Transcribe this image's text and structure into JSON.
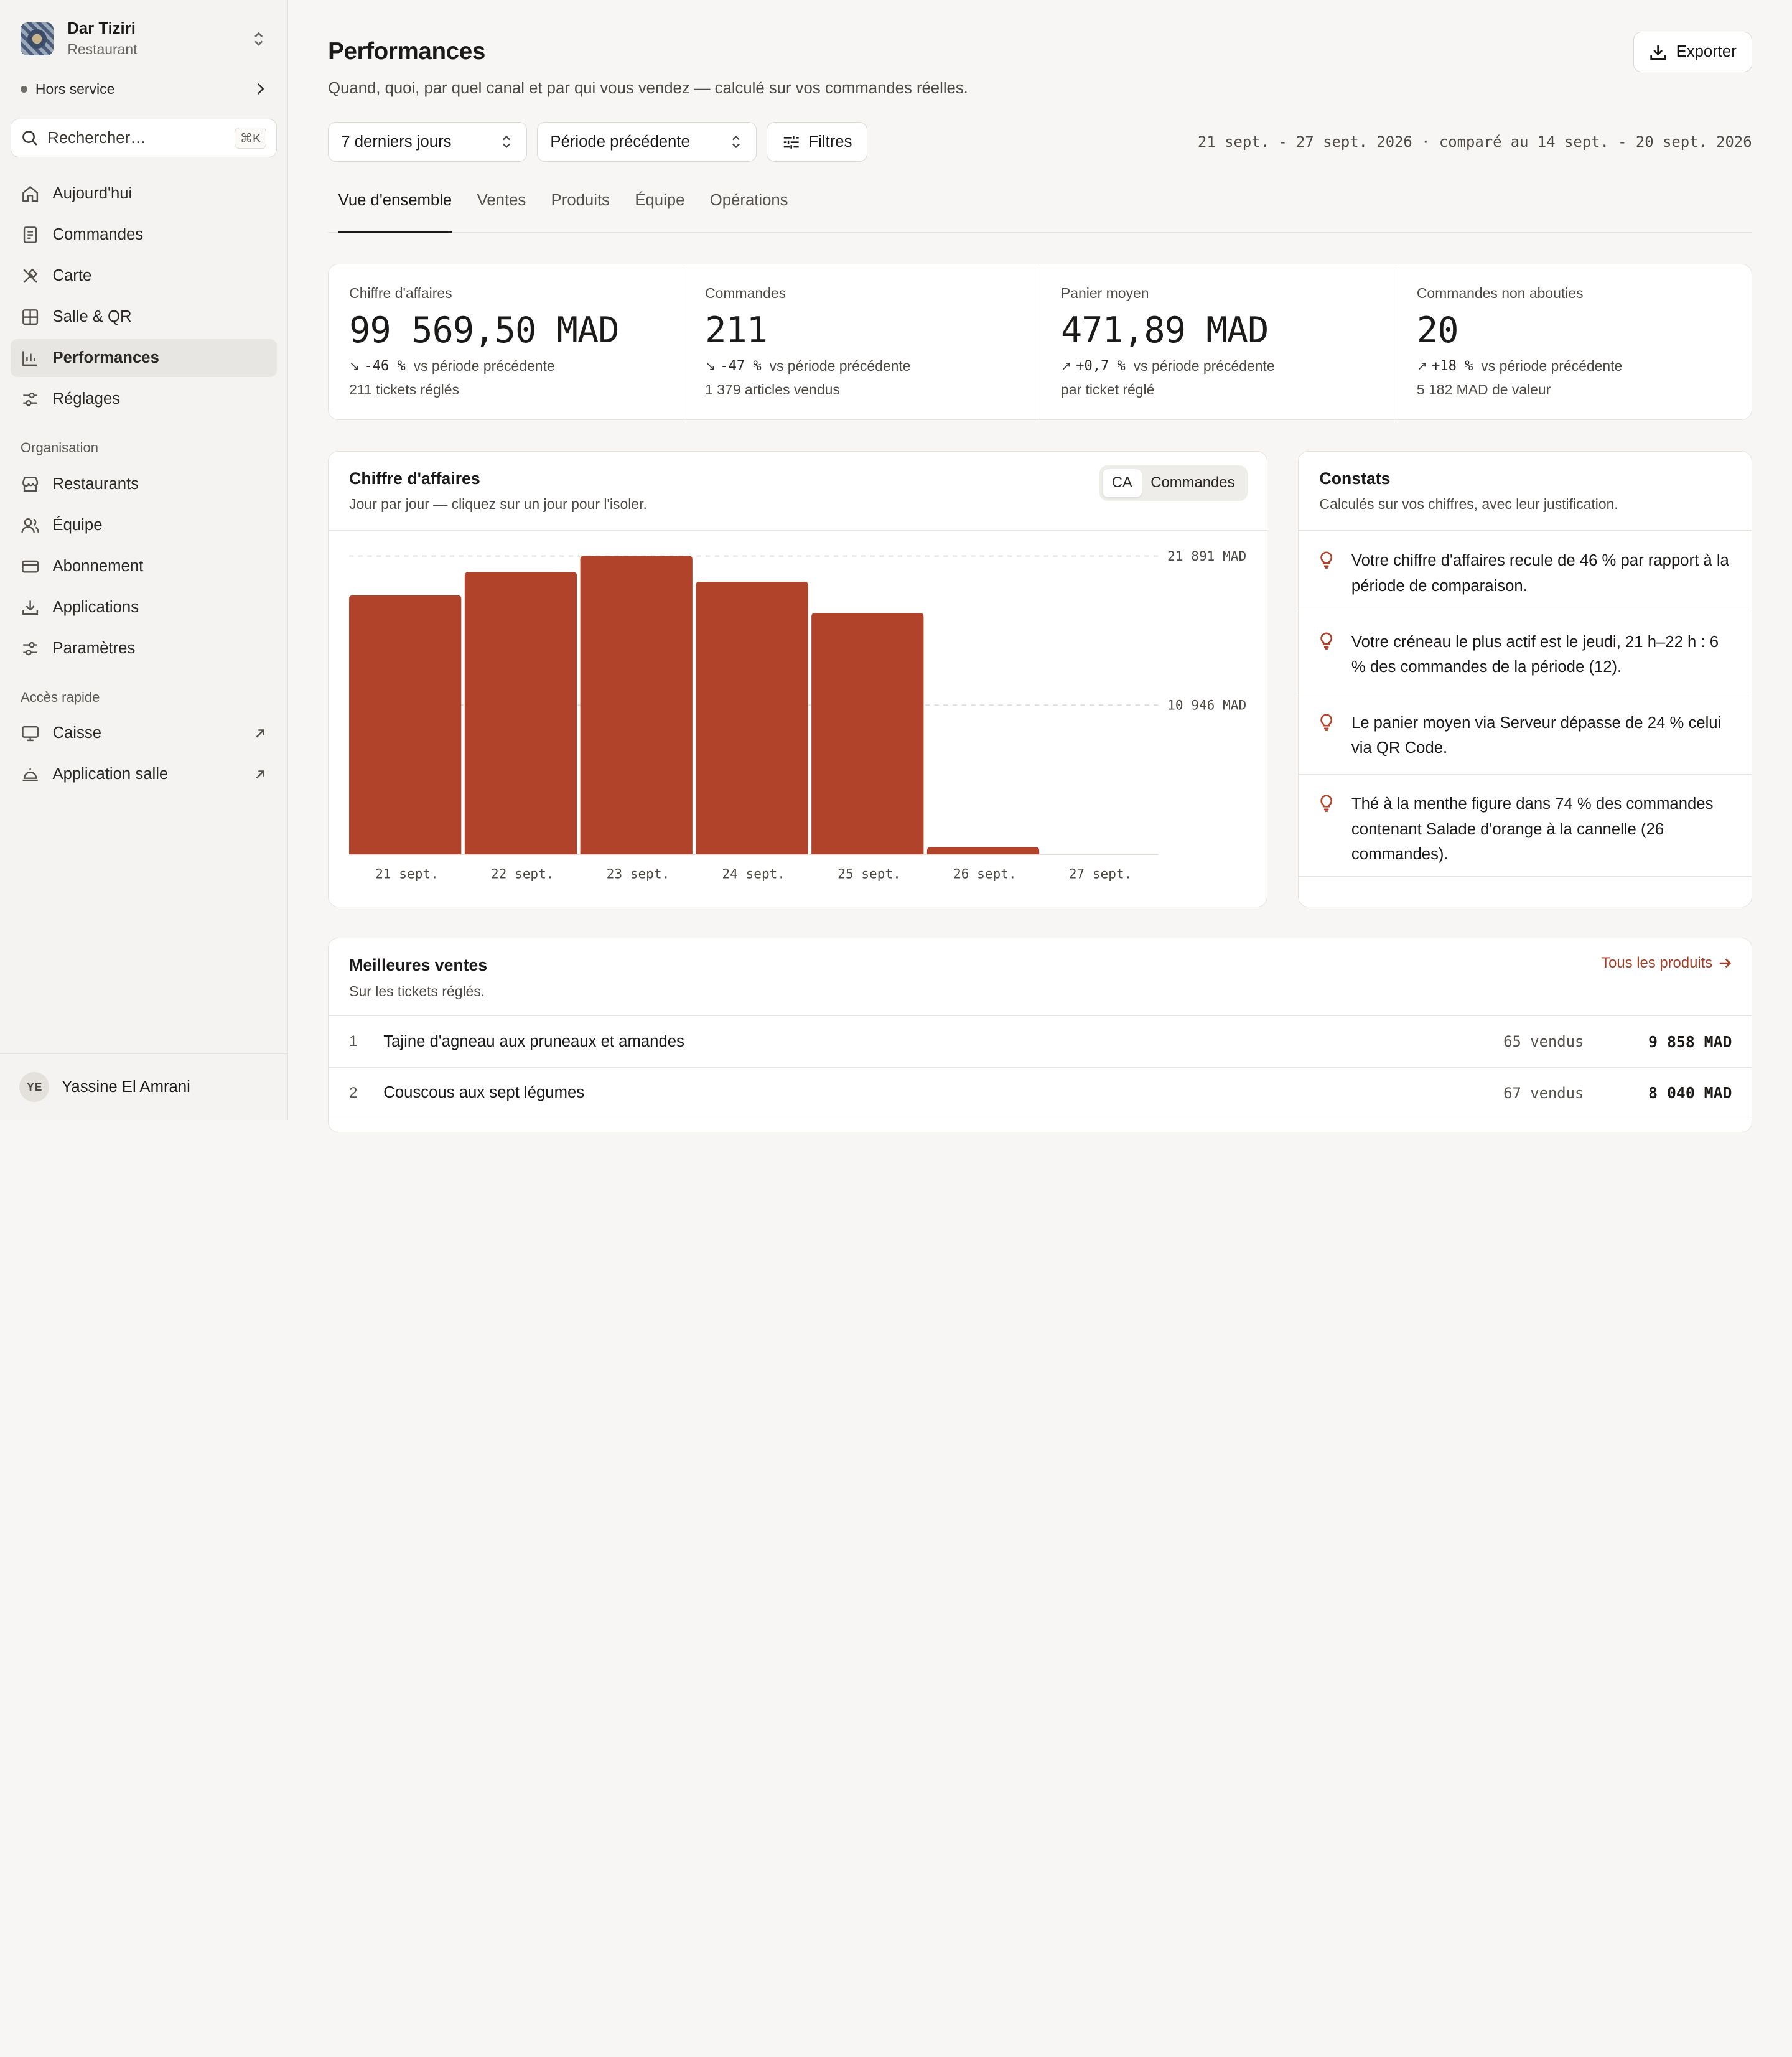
{
  "workspace": {
    "name": "Dar Tiziri",
    "subtitle": "Restaurant"
  },
  "status": {
    "label": "Hors service"
  },
  "search": {
    "placeholder": "Rechercher…",
    "shortcut": "⌘K"
  },
  "nav": {
    "main": [
      {
        "label": "Aujourd'hui",
        "icon": "home-icon"
      },
      {
        "label": "Commandes",
        "icon": "receipt-icon"
      },
      {
        "label": "Carte",
        "icon": "utensils-icon"
      },
      {
        "label": "Salle & QR",
        "icon": "grid-icon"
      },
      {
        "label": "Performances",
        "icon": "bar-chart-icon",
        "active": true
      },
      {
        "label": "Réglages",
        "icon": "sliders-icon"
      }
    ],
    "org_label": "Organisation",
    "org": [
      {
        "label": "Restaurants",
        "icon": "store-icon"
      },
      {
        "label": "Équipe",
        "icon": "users-icon"
      },
      {
        "label": "Abonnement",
        "icon": "credit-card-icon"
      },
      {
        "label": "Applications",
        "icon": "download-icon"
      },
      {
        "label": "Paramètres",
        "icon": "settings-icon"
      }
    ],
    "quick_label": "Accès rapide",
    "quick": [
      {
        "label": "Caisse",
        "icon": "monitor-icon"
      },
      {
        "label": "Application salle",
        "icon": "bell-icon"
      }
    ]
  },
  "user": {
    "initials": "YE",
    "name": "Yassine El Amrani"
  },
  "page": {
    "title": "Performances",
    "subtitle": "Quand, quoi, par quel canal et par qui vous vendez — calculé sur vos commandes réelles.",
    "export_label": "Exporter",
    "period_select": "7 derniers jours",
    "compare_select": "Période précédente",
    "filters_label": "Filtres",
    "range_text": "21 sept. - 27 sept. 2026 · comparé au 14 sept. - 20 sept. 2026"
  },
  "tabs": [
    "Vue d'ensemble",
    "Ventes",
    "Produits",
    "Équipe",
    "Opérations"
  ],
  "kpis": [
    {
      "label": "Chiffre d'affaires",
      "value": "99 569,50 MAD",
      "direction": "down",
      "delta": "-46 %",
      "delta_suffix": "vs période précédente",
      "foot": "211 tickets réglés"
    },
    {
      "label": "Commandes",
      "value": "211",
      "direction": "down",
      "delta": "-47 %",
      "delta_suffix": "vs période précédente",
      "foot": "1 379 articles vendus"
    },
    {
      "label": "Panier moyen",
      "value": "471,89 MAD",
      "direction": "up",
      "delta": "+0,7 %",
      "delta_suffix": "vs période précédente",
      "foot": "par ticket réglé"
    },
    {
      "label": "Commandes non abouties",
      "value": "20",
      "direction": "up",
      "delta": "+18 %",
      "delta_suffix": "vs période précédente",
      "foot": "5 182 MAD de valeur"
    }
  ],
  "chart_card": {
    "title": "Chiffre d'affaires",
    "subtitle": "Jour par jour — cliquez sur un jour pour l'isoler.",
    "toggle": [
      "CA",
      "Commandes"
    ]
  },
  "chart_data": {
    "type": "bar",
    "categories": [
      "21 sept.",
      "22 sept.",
      "23 sept.",
      "24 sept.",
      "25 sept.",
      "26 sept.",
      "27 sept."
    ],
    "values": [
      19000,
      20700,
      21891,
      20000,
      17700,
      520,
      0
    ],
    "title": "",
    "xlabel": "",
    "ylabel": "",
    "ylim": [
      0,
      21891
    ],
    "y_ticks": [
      {
        "value": 21891,
        "label": "21 891 MAD"
      },
      {
        "value": 10946,
        "label": "10 946 MAD"
      }
    ],
    "bar_color": "#b0432a",
    "grid": true
  },
  "constats": {
    "title": "Constats",
    "subtitle": "Calculés sur vos chiffres, avec leur justification.",
    "items": [
      "Votre chiffre d'affaires recule de 46 % par rapport à la période de comparaison.",
      "Votre créneau le plus actif est le jeudi, 21 h–22 h : 6 % des commandes de la période (12).",
      "Le panier moyen via Serveur dépasse de 24 % celui via QR Code.",
      "Thé à la menthe figure dans 74 % des commandes contenant Salade d'orange à la cannelle (26 commandes)."
    ]
  },
  "best": {
    "title": "Meilleures ventes",
    "subtitle": "Sur les tickets réglés.",
    "link": "Tous les produits",
    "rows": [
      {
        "rank": "1",
        "name": "Tajine d'agneau aux pruneaux et amandes",
        "qty": "65 vendus",
        "amount": "9 858 MAD"
      },
      {
        "rank": "2",
        "name": "Couscous aux sept légumes",
        "qty": "67 vendus",
        "amount": "8 040 MAD"
      }
    ]
  },
  "colors": {
    "accent": "#b0432a",
    "link": "#a13d25",
    "background": "#f7f6f4"
  }
}
